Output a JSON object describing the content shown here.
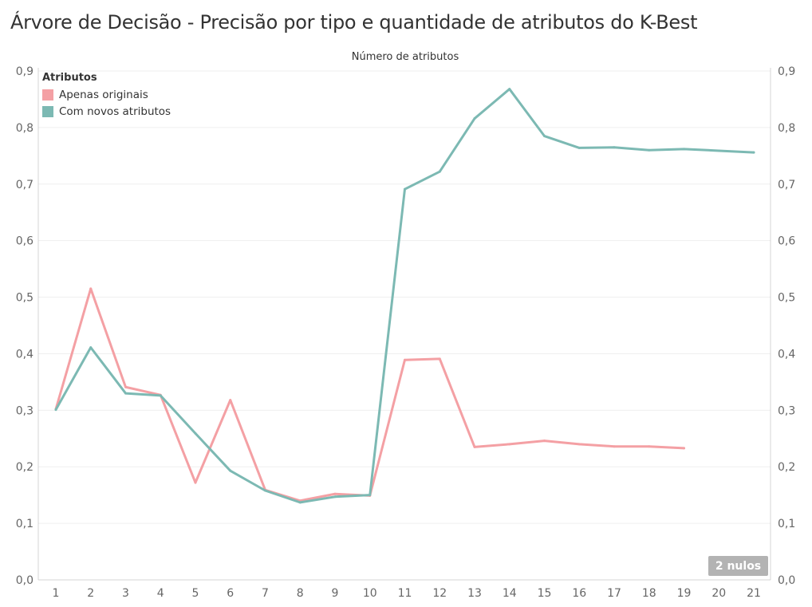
{
  "chart_data": {
    "type": "line",
    "title": "Árvore de Decisão - Precisão por tipo e quantidade de atributos do K-Best",
    "top_axis_title": "Número de atributos",
    "x": [
      1,
      2,
      3,
      4,
      5,
      6,
      7,
      8,
      9,
      10,
      11,
      12,
      13,
      14,
      15,
      16,
      17,
      18,
      19,
      20,
      21
    ],
    "ylim": [
      0,
      0.9
    ],
    "yticks": [
      "0,0",
      "0,1",
      "0,2",
      "0,3",
      "0,4",
      "0,5",
      "0,6",
      "0,7",
      "0,8",
      "0,9"
    ],
    "legend": {
      "title": "Atributos",
      "placement": "top-left"
    },
    "series": [
      {
        "name": "Apenas originais",
        "color": "#f4a0a4",
        "values": [
          0.302,
          0.515,
          0.341,
          0.327,
          0.172,
          0.318,
          0.159,
          0.14,
          0.152,
          0.149,
          0.389,
          0.391,
          0.235,
          0.24,
          0.246,
          0.24,
          0.236,
          0.236,
          0.233,
          null,
          null
        ]
      },
      {
        "name": "Com novos atributos",
        "color": "#7cb9b3",
        "values": [
          0.301,
          0.411,
          0.33,
          0.326,
          0.259,
          0.193,
          0.158,
          0.137,
          0.147,
          0.15,
          0.691,
          0.722,
          0.816,
          0.868,
          0.785,
          0.764,
          0.765,
          0.76,
          0.762,
          0.759,
          0.756
        ]
      }
    ],
    "grid": true,
    "null_indicator": "2 nulos"
  }
}
